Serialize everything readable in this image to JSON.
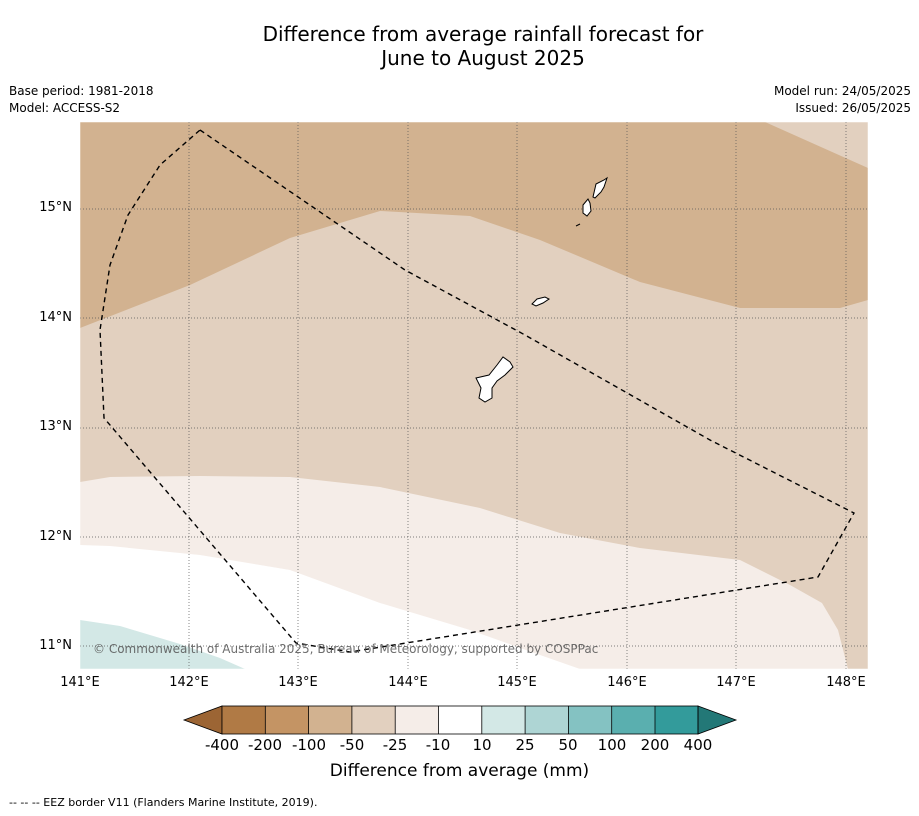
{
  "title": {
    "line1": "Difference from average rainfall forecast for",
    "line2": "June to August 2025"
  },
  "meta": {
    "base_period": "Base period: 1981-2018",
    "model": "Model: ACCESS-S2",
    "model_run": "Model run: 24/05/2025",
    "issued": "Issued: 26/05/2025"
  },
  "map": {
    "lat_labels": [
      "15°N",
      "14°N",
      "13°N",
      "12°N",
      "11°N"
    ],
    "lon_labels": [
      "141°E",
      "142°E",
      "143°E",
      "144°E",
      "145°E",
      "146°E",
      "147°E",
      "148°E"
    ],
    "copyright": "© Commonwealth of Australia 2025, Bureau of Meteorology, supported by COSPPac",
    "land_color": "#ffffff",
    "coastline_color": "#000000",
    "eez_line_style": "dashed"
  },
  "legend": {
    "tick_labels": [
      "-400",
      "-200",
      "-100",
      "-50",
      "-25",
      "-10",
      "10",
      "25",
      "50",
      "100",
      "200",
      "400"
    ],
    "colors": [
      "#9c6534",
      "#b07a45",
      "#c49464",
      "#d2b290",
      "#e2d0bf",
      "#f5ede8",
      "#ffffff",
      "#d3e8e6",
      "#aed5d4",
      "#84c2c2",
      "#5aafaf",
      "#339b9b",
      "#237877"
    ],
    "title": "Difference from average (mm)"
  },
  "footnote": "--  --  -- EEZ border V11 (Flanders Marine Institute, 2019)."
}
